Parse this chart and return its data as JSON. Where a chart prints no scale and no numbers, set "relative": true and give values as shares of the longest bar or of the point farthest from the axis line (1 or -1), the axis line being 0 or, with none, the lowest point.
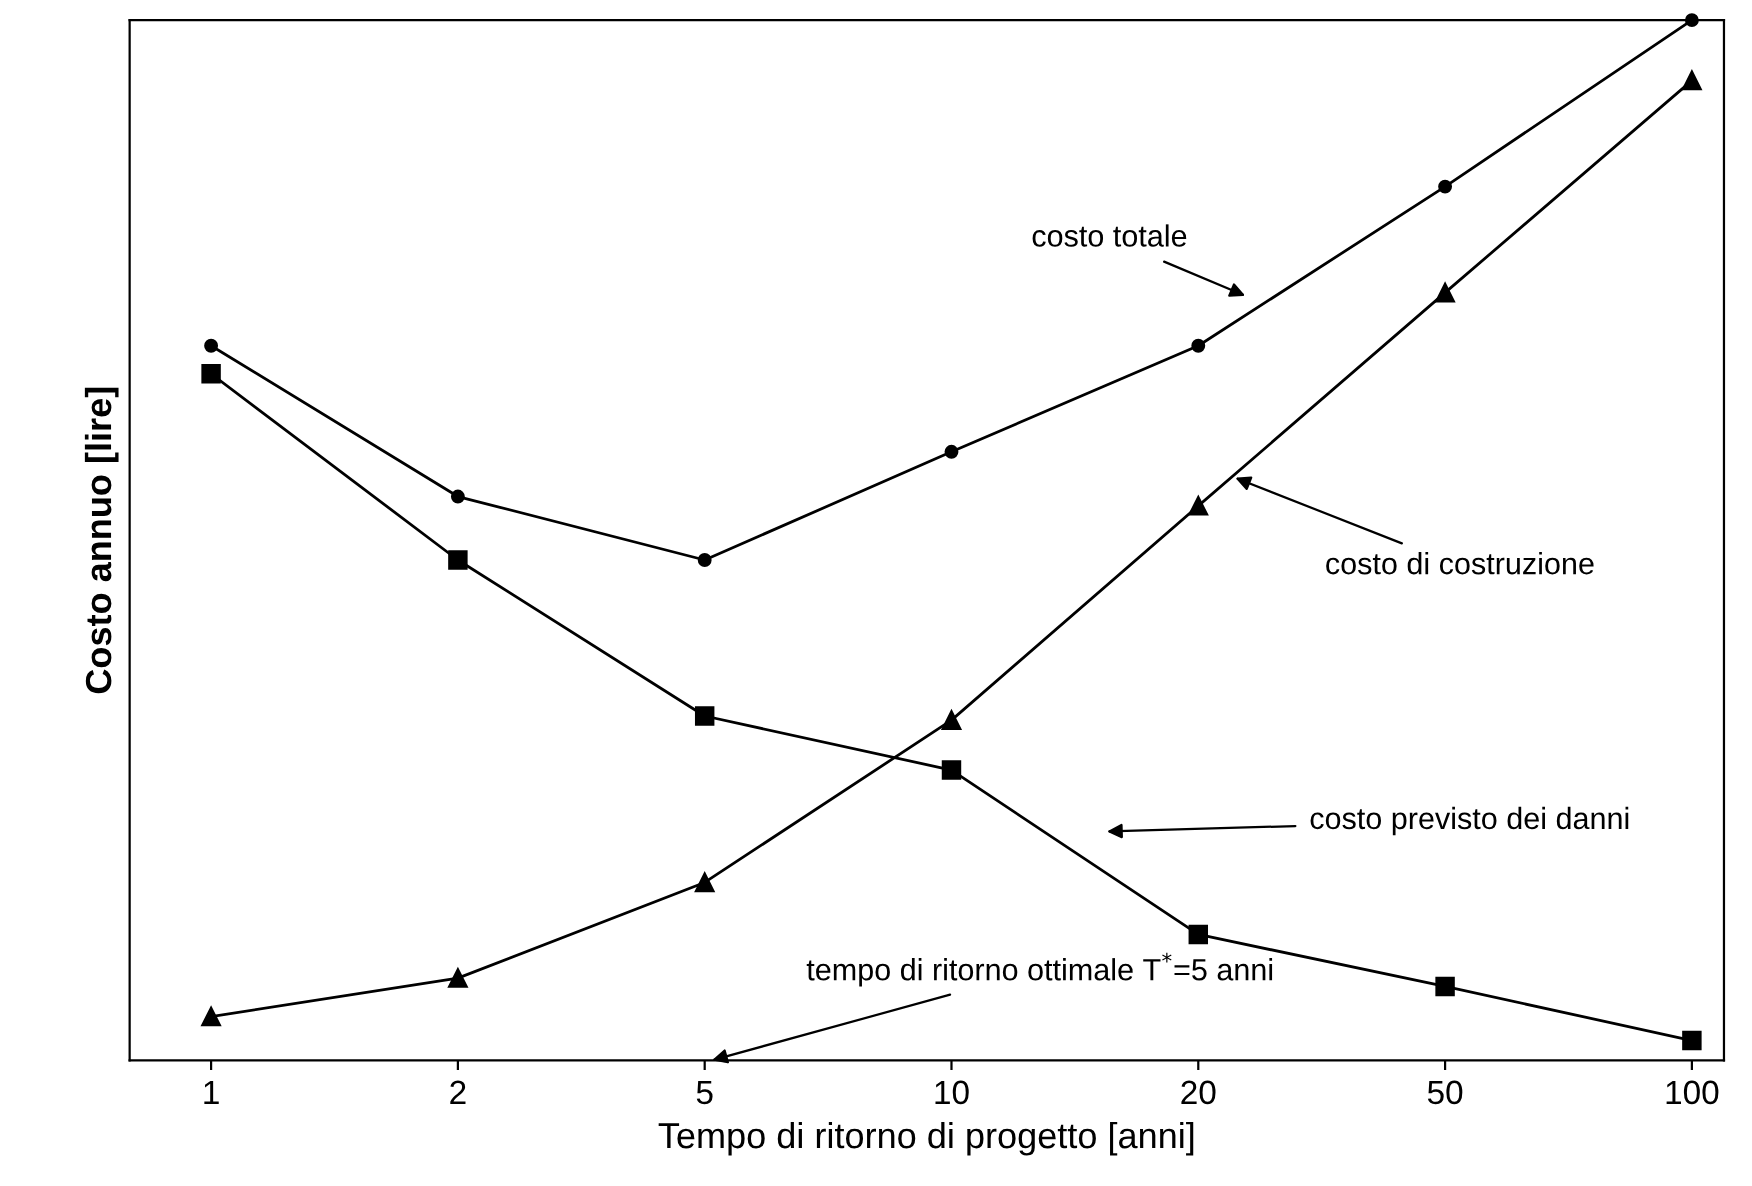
{
  "chart_data": {
    "type": "line",
    "relative": true,
    "xlabel": "Tempo di ritorno di progetto [anni]",
    "ylabel": "Costo annuo [lire]",
    "categories": [
      "1",
      "2",
      "5",
      "10",
      "20",
      "50",
      "100"
    ],
    "series": [
      {
        "color": "#000000",
        "marker": "circle",
        "values": [
          0.687,
          0.542,
          0.481,
          0.585,
          0.687,
          0.84,
          1
        ]
      },
      {
        "color": "#000000",
        "marker": "triangle",
        "values": [
          0.042,
          0.079,
          0.171,
          0.327,
          0.533,
          0.738,
          0.942
        ]
      },
      {
        "color": "#000000",
        "marker": "square",
        "values": [
          0.66,
          0.481,
          0.331,
          0.279,
          0.121,
          0.071,
          0.019
        ]
      }
    ],
    "annotations": [
      "costo totale",
      "costo di costruzione",
      "costo previsto dei danni",
      "tempo di ritorno ottimale T$^{*}$=5 anni"
    ],
    "grid": false,
    "legend": false,
    "line_style": "solid"
  }
}
